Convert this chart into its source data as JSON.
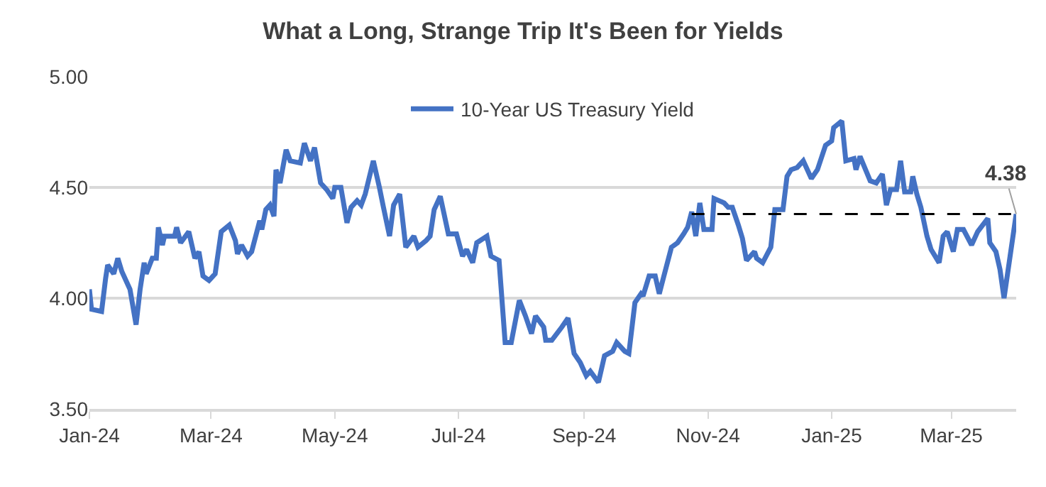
{
  "chart_data": {
    "type": "line",
    "title": "What a Long, Strange Trip It's Been for Yields",
    "xlim": [
      "2024-01-01",
      "2025-04-02"
    ],
    "xticks": [
      {
        "value": "2024-01-01",
        "label": "Jan-24"
      },
      {
        "value": "2024-03-01",
        "label": "Mar-24"
      },
      {
        "value": "2024-05-01",
        "label": "May-24"
      },
      {
        "value": "2024-07-01",
        "label": "Jul-24"
      },
      {
        "value": "2024-09-01",
        "label": "Sep-24"
      },
      {
        "value": "2024-11-01",
        "label": "Nov-24"
      },
      {
        "value": "2025-01-01",
        "label": "Jan-25"
      },
      {
        "value": "2025-03-01",
        "label": "Mar-25"
      }
    ],
    "ylim": [
      3.5,
      5.0
    ],
    "yticks": [
      {
        "value": 3.5,
        "label": "3.50"
      },
      {
        "value": 4.0,
        "label": "4.00"
      },
      {
        "value": 4.5,
        "label": "4.50"
      },
      {
        "value": 5.0,
        "label": "5.00"
      }
    ],
    "grid": "y",
    "legend": "top",
    "marker": "none",
    "series": [
      {
        "name": "10-Year US Treasury Yield",
        "color": "#4472c4",
        "line_style": "solid",
        "x": [
          "2024-01-01",
          "2024-01-02",
          "2024-01-07",
          "2024-01-09",
          "2024-01-10",
          "2024-01-13",
          "2024-01-15",
          "2024-01-17",
          "2024-01-21",
          "2024-01-24",
          "2024-01-26",
          "2024-01-28",
          "2024-01-29",
          "2024-02-01",
          "2024-02-03",
          "2024-02-04",
          "2024-02-06",
          "2024-02-07",
          "2024-02-12",
          "2024-02-13",
          "2024-02-15",
          "2024-02-19",
          "2024-02-22",
          "2024-02-24",
          "2024-02-26",
          "2024-02-29",
          "2024-03-03",
          "2024-03-06",
          "2024-03-10",
          "2024-03-13",
          "2024-03-14",
          "2024-03-16",
          "2024-03-19",
          "2024-03-21",
          "2024-03-25",
          "2024-03-26",
          "2024-03-28",
          "2024-03-30",
          "2024-04-01",
          "2024-04-02",
          "2024-04-04",
          "2024-04-07",
          "2024-04-09",
          "2024-04-14",
          "2024-04-16",
          "2024-04-19",
          "2024-04-21",
          "2024-04-24",
          "2024-04-27",
          "2024-04-30",
          "2024-05-01",
          "2024-05-04",
          "2024-05-07",
          "2024-05-09",
          "2024-05-12",
          "2024-05-14",
          "2024-05-16",
          "2024-05-20",
          "2024-05-23",
          "2024-05-25",
          "2024-05-28",
          "2024-05-30",
          "2024-06-02",
          "2024-06-05",
          "2024-06-09",
          "2024-06-11",
          "2024-06-15",
          "2024-06-17",
          "2024-06-19",
          "2024-06-22",
          "2024-06-26",
          "2024-06-30",
          "2024-07-03",
          "2024-07-05",
          "2024-07-08",
          "2024-07-10",
          "2024-07-15",
          "2024-07-17",
          "2024-07-21",
          "2024-07-24",
          "2024-07-27",
          "2024-07-31",
          "2024-08-03",
          "2024-08-06",
          "2024-08-08",
          "2024-08-12",
          "2024-08-13",
          "2024-08-16",
          "2024-08-21",
          "2024-08-24",
          "2024-08-27",
          "2024-08-30",
          "2024-09-02",
          "2024-09-04",
          "2024-09-08",
          "2024-09-11",
          "2024-09-15",
          "2024-09-17",
          "2024-09-21",
          "2024-09-23",
          "2024-09-26",
          "2024-09-29",
          "2024-09-30",
          "2024-10-03",
          "2024-10-06",
          "2024-10-08",
          "2024-10-10",
          "2024-10-14",
          "2024-10-17",
          "2024-10-20",
          "2024-10-22",
          "2024-10-24",
          "2024-10-26",
          "2024-10-28",
          "2024-10-30",
          "2024-11-03",
          "2024-11-04",
          "2024-11-09",
          "2024-11-11",
          "2024-11-13",
          "2024-11-16",
          "2024-11-18",
          "2024-11-20",
          "2024-11-24",
          "2024-11-25",
          "2024-11-28",
          "2024-12-02",
          "2024-12-04",
          "2024-12-08",
          "2024-12-10",
          "2024-12-12",
          "2024-12-15",
          "2024-12-18",
          "2024-12-22",
          "2024-12-25",
          "2024-12-29",
          "2025-01-01",
          "2025-01-02",
          "2025-01-06",
          "2025-01-08",
          "2025-01-12",
          "2025-01-13",
          "2025-01-15",
          "2025-01-20",
          "2025-01-23",
          "2025-01-26",
          "2025-01-28",
          "2025-01-30",
          "2025-02-02",
          "2025-02-04",
          "2025-02-06",
          "2025-02-09",
          "2025-02-10",
          "2025-02-12",
          "2025-02-14",
          "2025-02-17",
          "2025-02-19",
          "2025-02-23",
          "2025-02-25",
          "2025-02-27",
          "2025-03-02",
          "2025-03-04",
          "2025-03-07",
          "2025-03-11",
          "2025-03-14",
          "2025-03-19",
          "2025-03-20",
          "2025-03-23",
          "2025-03-25",
          "2025-03-27",
          "2025-03-30",
          "2025-04-02"
        ],
        "values": [
          4.04,
          3.95,
          3.94,
          4.09,
          4.15,
          4.11,
          4.18,
          4.12,
          4.04,
          3.88,
          4.04,
          4.16,
          4.11,
          4.18,
          4.18,
          4.32,
          4.24,
          4.28,
          4.28,
          4.32,
          4.25,
          4.3,
          4.18,
          4.21,
          4.1,
          4.08,
          4.11,
          4.3,
          4.33,
          4.26,
          4.2,
          4.24,
          4.19,
          4.21,
          4.35,
          4.31,
          4.4,
          4.42,
          4.37,
          4.58,
          4.52,
          4.67,
          4.62,
          4.61,
          4.7,
          4.62,
          4.68,
          4.52,
          4.49,
          4.45,
          4.5,
          4.5,
          4.34,
          4.41,
          4.44,
          4.42,
          4.47,
          4.62,
          4.5,
          4.41,
          4.28,
          4.42,
          4.47,
          4.23,
          4.28,
          4.23,
          4.26,
          4.28,
          4.4,
          4.46,
          4.29,
          4.29,
          4.19,
          4.22,
          4.16,
          4.25,
          4.28,
          4.19,
          4.17,
          3.8,
          3.8,
          3.99,
          3.92,
          3.84,
          3.92,
          3.87,
          3.81,
          3.81,
          3.87,
          3.91,
          3.75,
          3.71,
          3.65,
          3.67,
          3.62,
          3.74,
          3.76,
          3.8,
          3.76,
          3.75,
          3.98,
          4.02,
          4.01,
          4.1,
          4.1,
          4.02,
          4.09,
          4.23,
          4.25,
          4.29,
          4.32,
          4.39,
          4.28,
          4.43,
          4.31,
          4.31,
          4.45,
          4.43,
          4.41,
          4.41,
          4.33,
          4.27,
          4.17,
          4.21,
          4.18,
          4.16,
          4.23,
          4.4,
          4.4,
          4.55,
          4.58,
          4.59,
          4.62,
          4.54,
          4.58,
          4.69,
          4.71,
          4.77,
          4.8,
          4.62,
          4.63,
          4.58,
          4.64,
          4.53,
          4.52,
          4.56,
          4.42,
          4.49,
          4.49,
          4.62,
          4.48,
          4.48,
          4.55,
          4.47,
          4.41,
          4.28,
          4.22,
          4.16,
          4.28,
          4.3,
          4.21,
          4.31,
          4.31,
          4.24,
          4.3,
          4.36,
          4.25,
          4.21,
          4.13,
          4.0,
          4.19,
          4.38
        ]
      },
      {
        "type": "line",
        "color": "#000000",
        "line_style": "dashed",
        "x": [
          "2024-10-24",
          "2025-04-02"
        ],
        "values": [
          4.38,
          4.38
        ]
      }
    ],
    "annotations": [
      {
        "text": "4.38",
        "x": "2025-04-02",
        "y": 4.38
      }
    ]
  }
}
